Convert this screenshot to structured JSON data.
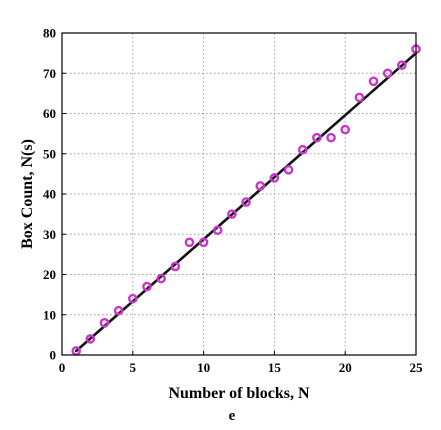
{
  "panel_label": "e",
  "colors": {
    "points": "#cc33cc",
    "fit": "#111111",
    "grid": "#9a9a9a"
  },
  "chart_data": {
    "type": "scatter",
    "title": "",
    "xlabel": "Number of blocks, N",
    "ylabel": "Box Count, N(s)",
    "xlim": [
      0,
      25
    ],
    "ylim": [
      0,
      80
    ],
    "xticks": [
      0,
      5,
      10,
      15,
      20,
      25
    ],
    "yticks": [
      0,
      10,
      20,
      30,
      40,
      50,
      60,
      70,
      80
    ],
    "grid": true,
    "marker": "circle",
    "x": [
      1,
      2,
      3,
      4,
      5,
      6,
      7,
      8,
      9,
      10,
      11,
      12,
      13,
      14,
      15,
      16,
      17,
      18,
      19,
      20,
      21,
      22,
      23,
      24,
      25
    ],
    "y": [
      1,
      4,
      8,
      11,
      14,
      17,
      19,
      22,
      28,
      28,
      31,
      35,
      38,
      42,
      44,
      46,
      51,
      54,
      54,
      56,
      64,
      68,
      70,
      72,
      76
    ],
    "fit_line": {
      "x": [
        1,
        25
      ],
      "y": [
        1,
        75
      ]
    }
  }
}
